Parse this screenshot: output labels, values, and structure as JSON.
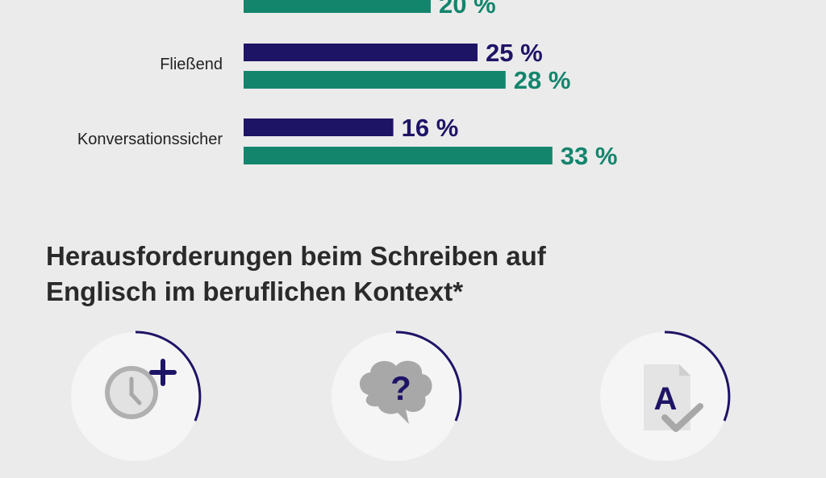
{
  "chart_data": {
    "type": "bar",
    "orientation": "horizontal",
    "categories": [
      "",
      "Fließend",
      "Konversationssicher"
    ],
    "series": [
      {
        "color": "#1e1466",
        "values": [
          null,
          25,
          16
        ],
        "labels": [
          "",
          "25 %",
          "16 %"
        ]
      },
      {
        "color": "#14856d",
        "values": [
          20,
          28,
          33
        ],
        "labels": [
          "20 %",
          "28 %",
          "33 %"
        ]
      }
    ],
    "value_suffix": " %"
  },
  "section": {
    "title_line1": "Herausforderungen beim Schreiben auf",
    "title_line2": "Englisch im beruflichen Kontext*"
  },
  "icons": [
    {
      "name": "clock-plus-icon"
    },
    {
      "name": "brain-question-icon"
    },
    {
      "name": "document-a-check-icon"
    }
  ],
  "colors": {
    "navy": "#1e1466",
    "green": "#14856d",
    "background": "#ebebeb",
    "circle": "#f5f5f5",
    "icon_gray": "#a8a8a8"
  }
}
